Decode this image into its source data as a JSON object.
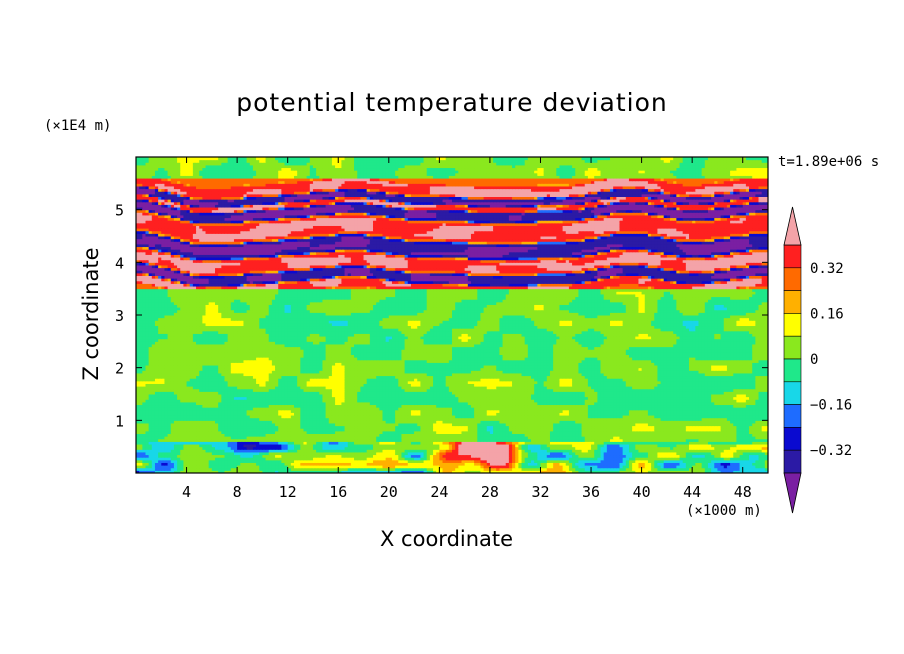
{
  "chart_data": {
    "type": "heatmap",
    "title": "potential temperature deviation",
    "xlabel": "X coordinate",
    "ylabel": "Z coordinate",
    "x_unit_label": "(×1000 m)",
    "y_unit_label": "(×1E4 m)",
    "time_label": "t=1.89e+06 s",
    "xlim": [
      0,
      50
    ],
    "ylim": [
      0,
      6
    ],
    "x_ticks": [
      4,
      8,
      12,
      16,
      20,
      24,
      28,
      32,
      36,
      40,
      44,
      48
    ],
    "y_ticks": [
      1,
      2,
      3,
      4,
      5
    ],
    "colorbar": {
      "ticks": [
        "0.32",
        "0.16",
        "0",
        "−0.16",
        "−0.32"
      ],
      "tick_values": [
        0.32,
        0.16,
        0,
        -0.16,
        -0.32
      ],
      "levels": [
        -0.4,
        -0.32,
        -0.24,
        -0.16,
        -0.08,
        0,
        0.08,
        0.16,
        0.24,
        0.32,
        0.4
      ],
      "colors": [
        "#7a1fa2",
        "#2b1aa5",
        "#0a0ad0",
        "#1e6cff",
        "#18d7e8",
        "#1fe88a",
        "#8ae81e",
        "#ffff00",
        "#ffb000",
        "#ff6a00",
        "#ff2020",
        "#f4a3a8"
      ],
      "extend": "both"
    },
    "regions": [
      {
        "z": [
          0.0,
          0.6
        ],
        "pattern": "mixed warm/cold surface layer",
        "warm_peak": {
          "x": 27.5,
          "z": 0.4
        }
      },
      {
        "z": [
          0.6,
          3.5
        ],
        "pattern": "near-zero green",
        "min": -0.08,
        "max": 0.08
      },
      {
        "z": [
          3.5,
          5.6
        ],
        "pattern": "alternating layers",
        "bands": [
          {
            "z": [
              3.5,
              3.7
            ],
            "value": 0.4
          },
          {
            "z": [
              3.7,
              3.9
            ],
            "value": -0.4
          },
          {
            "z": [
              3.9,
              4.2
            ],
            "value": 0.4
          },
          {
            "z": [
              4.2,
              4.5
            ],
            "value": -0.4
          },
          {
            "z": [
              4.5,
              4.9
            ],
            "value": 0.4
          },
          {
            "z": [
              4.9,
              5.1
            ],
            "value": -0.4
          },
          {
            "z": [
              5.1,
              5.2
            ],
            "value": 0.4
          },
          {
            "z": [
              5.2,
              5.35
            ],
            "value": -0.4
          },
          {
            "z": [
              5.35,
              5.6
            ],
            "value": 0.4
          }
        ]
      },
      {
        "z": [
          5.6,
          6.0
        ],
        "pattern": "near-zero green",
        "min": -0.08,
        "max": 0.08
      }
    ]
  }
}
